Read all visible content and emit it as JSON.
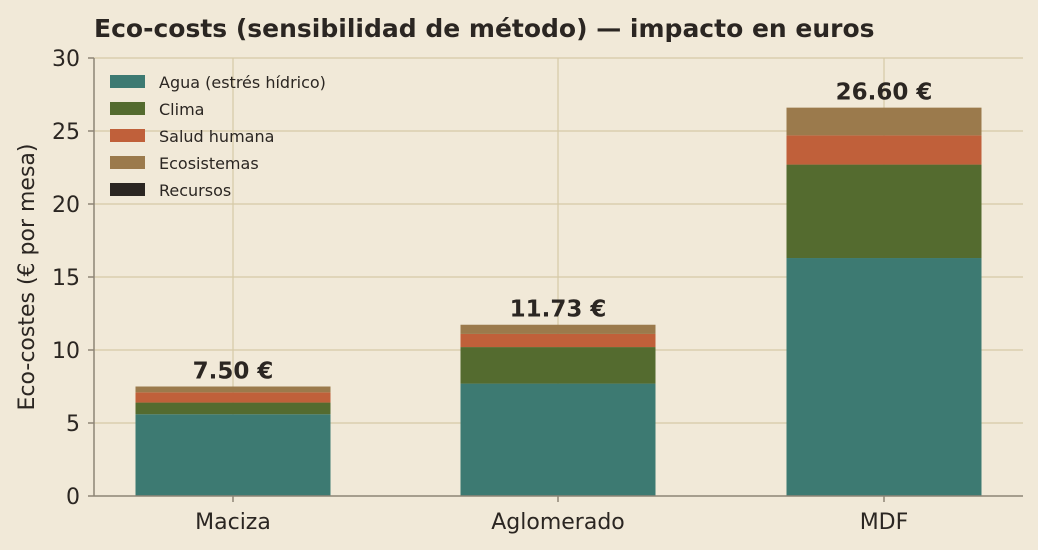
{
  "chart_data": {
    "type": "bar",
    "stacked": true,
    "title": "Eco-costs (sensibilidad de método) — impacto en euros",
    "xlabel": "",
    "ylabel": "Eco-costes (€ por mesa)",
    "categories": [
      "Maciza",
      "Aglomerado",
      "MDF"
    ],
    "ylim": [
      0,
      30
    ],
    "yticks": [
      0,
      5,
      10,
      15,
      20,
      25,
      30
    ],
    "grid": true,
    "legend_position": "top-left",
    "series": [
      {
        "name": "Agua (estrés hídrico)",
        "color": "#3d7a72",
        "values": [
          5.6,
          7.7,
          16.3
        ]
      },
      {
        "name": "Clima",
        "color": "#546b2f",
        "values": [
          0.8,
          2.5,
          6.4
        ]
      },
      {
        "name": "Salud humana",
        "color": "#c0603a",
        "values": [
          0.7,
          0.9,
          2.0
        ]
      },
      {
        "name": "Ecosistemas",
        "color": "#9b7a4c",
        "values": [
          0.4,
          0.63,
          1.9
        ]
      },
      {
        "name": "Recursos",
        "color": "#2b2622",
        "values": [
          0.0,
          0.0,
          0.0
        ]
      }
    ],
    "totals": [
      "7.50 €",
      "11.73 €",
      "26.60 €"
    ],
    "colors": {
      "background": "#f1e9d8",
      "grid": "#d6c9a6",
      "axis": "#8e8576",
      "text": "#2b2622"
    }
  }
}
